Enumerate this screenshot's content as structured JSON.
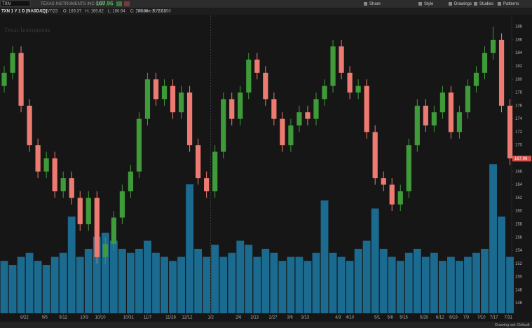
{
  "toolbar": {
    "symbol": "TXN",
    "company": "TEXAS INSTRUMENTS INC COM",
    "price": "167.96",
    "buttons": [
      "Share",
      "Style",
      "Drawings",
      "Studies",
      "Patterns"
    ]
  },
  "status": {
    "drawing_set": "Drawing set: Default"
  },
  "chart_data": {
    "type": "candlestick",
    "title": "TXN 1 Y 1 D [NASDAQ]",
    "ohlc_info": [
      "D: 8/7/23",
      "O: 169.37",
      "H: 169.82",
      "L: 166.94",
      "C: 167.96",
      "R: 2.88"
    ],
    "volume_label": "Volume",
    "volume_info": "2,787,150",
    "watermark": "Texas Instruments",
    "up_color": "#3f9a3a",
    "down_color": "#ee7b72",
    "volume_color": "#1b6b90",
    "open": [
      179,
      181,
      184,
      176,
      170,
      166,
      168,
      163,
      165,
      162,
      158,
      162,
      153,
      155,
      159,
      163,
      166,
      174,
      180,
      177,
      179,
      175,
      178,
      170,
      165,
      163,
      169,
      177,
      174,
      178,
      183,
      181,
      177,
      174,
      170,
      173,
      175,
      174,
      177,
      179,
      185,
      181,
      178,
      179,
      172,
      165,
      164,
      161,
      163,
      170,
      176,
      173,
      175,
      178,
      172,
      175,
      179,
      181,
      184,
      186,
      176
    ],
    "high": [
      182,
      185,
      185,
      177,
      171,
      169,
      169,
      166,
      166,
      163,
      163,
      163,
      156,
      160,
      164,
      167,
      175,
      181,
      181,
      180,
      180,
      179,
      179,
      171,
      166,
      170,
      178,
      178,
      179,
      184,
      184,
      182,
      178,
      175,
      174,
      176,
      176,
      178,
      180,
      186,
      186,
      182,
      180,
      180,
      173,
      166,
      165,
      164,
      171,
      177,
      177,
      176,
      179,
      179,
      176,
      180,
      182,
      185,
      188,
      187,
      177
    ],
    "low": [
      178,
      180,
      175,
      169,
      165,
      165,
      162,
      162,
      161,
      157,
      157,
      152,
      152,
      154,
      158,
      162,
      165,
      173,
      176,
      176,
      174,
      174,
      169,
      164,
      162,
      162,
      168,
      173,
      173,
      177,
      180,
      176,
      173,
      169,
      169,
      172,
      173,
      173,
      176,
      178,
      180,
      177,
      177,
      171,
      164,
      163,
      160,
      160,
      162,
      169,
      172,
      172,
      174,
      171,
      171,
      174,
      178,
      180,
      183,
      175,
      167
    ],
    "close": [
      181,
      184,
      176,
      170,
      166,
      168,
      163,
      165,
      162,
      158,
      162,
      153,
      155,
      159,
      163,
      166,
      174,
      180,
      177,
      179,
      175,
      178,
      170,
      165,
      163,
      169,
      177,
      174,
      178,
      183,
      181,
      177,
      174,
      170,
      173,
      175,
      174,
      177,
      179,
      185,
      181,
      178,
      179,
      172,
      165,
      164,
      161,
      163,
      170,
      176,
      173,
      175,
      178,
      172,
      175,
      179,
      181,
      184,
      186,
      176,
      168
    ],
    "volume": [
      6500000,
      6000000,
      7000000,
      7500000,
      6500000,
      6000000,
      7000000,
      7500000,
      12000000,
      7000000,
      8000000,
      9500000,
      10000000,
      9000000,
      8000000,
      7500000,
      8000000,
      9000000,
      7500000,
      7000000,
      6500000,
      7000000,
      16000000,
      8000000,
      7000000,
      8500000,
      7000000,
      7500000,
      9000000,
      8500000,
      7000000,
      8000000,
      7500000,
      6500000,
      7000000,
      7000000,
      6500000,
      7500000,
      14000000,
      7500000,
      7000000,
      6500000,
      8000000,
      9000000,
      13000000,
      8000000,
      7000000,
      6500000,
      7500000,
      8000000,
      7000000,
      7500000,
      6500000,
      7000000,
      6500000,
      7000000,
      7500000,
      8000000,
      18500000,
      12000000,
      7000000
    ],
    "vlim": [
      0,
      20000000
    ],
    "last_price": 167.96,
    "xlim": [
      -0.5,
      60.2
    ],
    "xticks": [
      {
        "value": 2.4,
        "label": "8/22"
      },
      {
        "value": 4.8,
        "label": "9/5"
      },
      {
        "value": 7,
        "label": "9/12"
      },
      {
        "value": 9.5,
        "label": "10/3"
      },
      {
        "value": 11.4,
        "label": "10/10"
      },
      {
        "value": 14.75,
        "label": "10/31"
      },
      {
        "value": 17,
        "label": "11/7"
      },
      {
        "value": 19.75,
        "label": "11/28"
      },
      {
        "value": 21.7,
        "label": "12/12"
      },
      {
        "value": 24.5,
        "label": "1/2"
      },
      {
        "value": 27.8,
        "label": "2/6"
      },
      {
        "value": 29.7,
        "label": "2/13"
      },
      {
        "value": 31.9,
        "label": "2/27"
      },
      {
        "value": 33.9,
        "label": "3/6"
      },
      {
        "value": 35.7,
        "label": "3/13"
      },
      {
        "value": 39.6,
        "label": "4/3"
      },
      {
        "value": 41,
        "label": "4/10"
      },
      {
        "value": 44.25,
        "label": "5/1"
      },
      {
        "value": 45.8,
        "label": "5/8"
      },
      {
        "value": 47.4,
        "label": "5/15"
      },
      {
        "value": 49.8,
        "label": "5/29"
      },
      {
        "value": 51.7,
        "label": "6/12"
      },
      {
        "value": 53.3,
        "label": "6/19"
      },
      {
        "value": 54.8,
        "label": "7/3"
      },
      {
        "value": 56.6,
        "label": "7/10"
      },
      {
        "value": 58.1,
        "label": "7/17"
      },
      {
        "value": 59.8,
        "label": "7/31"
      }
    ],
    "ylim": [
      145,
      189.5
    ],
    "yticks": [
      146,
      148,
      150,
      152,
      154,
      156,
      158,
      160,
      162,
      164,
      166,
      168,
      170,
      172,
      174,
      176,
      178,
      180,
      182,
      184,
      186,
      188
    ]
  }
}
